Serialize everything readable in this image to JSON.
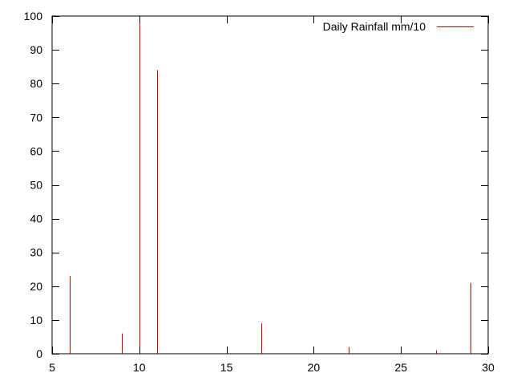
{
  "chart_data": {
    "type": "bar",
    "style": "impulses",
    "title": "",
    "xlabel": "",
    "ylabel": "",
    "xlim": [
      5,
      30
    ],
    "ylim": [
      0,
      100
    ],
    "x_ticks": [
      5,
      10,
      15,
      20,
      25,
      30
    ],
    "y_ticks": [
      0,
      10,
      20,
      30,
      40,
      50,
      60,
      70,
      80,
      90,
      100
    ],
    "grid": false,
    "legend_position": "top-right",
    "series": [
      {
        "name": "Daily Rainfall mm/10",
        "color": "#cc0000",
        "x": [
          6,
          9,
          10,
          11,
          17,
          22,
          27,
          29
        ],
        "values": [
          23,
          6,
          100,
          84,
          9,
          2,
          1,
          21
        ]
      }
    ]
  }
}
